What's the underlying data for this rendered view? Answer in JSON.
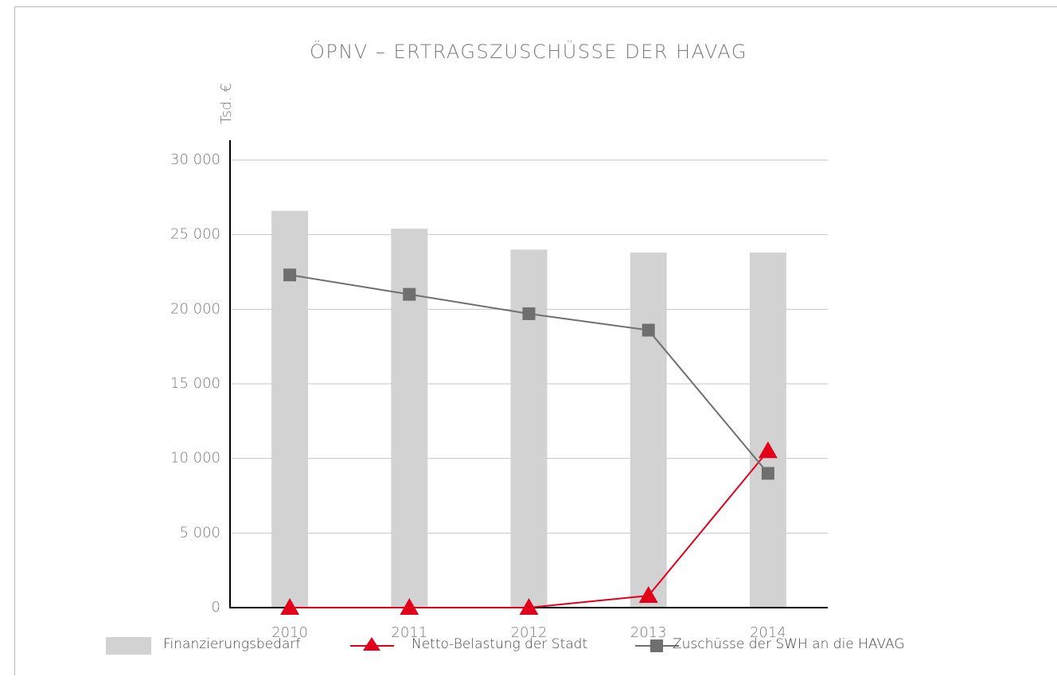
{
  "chart_data": {
    "type": "bar",
    "title": "ÖPNV – ERTRAGSZUSCHÜSSE DER HAVAG",
    "y_label": "Tsd. €",
    "categories": [
      "2010",
      "2011",
      "2012",
      "2013",
      "2014"
    ],
    "series": [
      {
        "name": "Finanzierungsbedarf",
        "type": "bar",
        "color": "#d2d2d2",
        "values": [
          26600,
          25400,
          24000,
          23800,
          23800
        ]
      },
      {
        "name": "Netto-Belastung der Stadt",
        "type": "line",
        "marker": "triangle",
        "color": "#e2001a",
        "values": [
          0,
          0,
          0,
          800,
          10500
        ]
      },
      {
        "name": "Zuschüsse der SWH an die HAVAG",
        "type": "line",
        "marker": "square",
        "color": "#6f6f6f",
        "values": [
          22300,
          21000,
          19700,
          18600,
          9000
        ]
      }
    ],
    "ylim": [
      0,
      30000
    ],
    "yticks": [
      0,
      {
        "value": 5000,
        "label": "5 000"
      },
      {
        "value": 10000,
        "label": "10 000"
      },
      {
        "value": 15000,
        "label": "15 000"
      },
      {
        "value": 20000,
        "label": "20 000"
      },
      {
        "value": 25000,
        "label": "25 000"
      },
      {
        "value": 30000,
        "label": "30 000"
      }
    ],
    "grid": true
  }
}
